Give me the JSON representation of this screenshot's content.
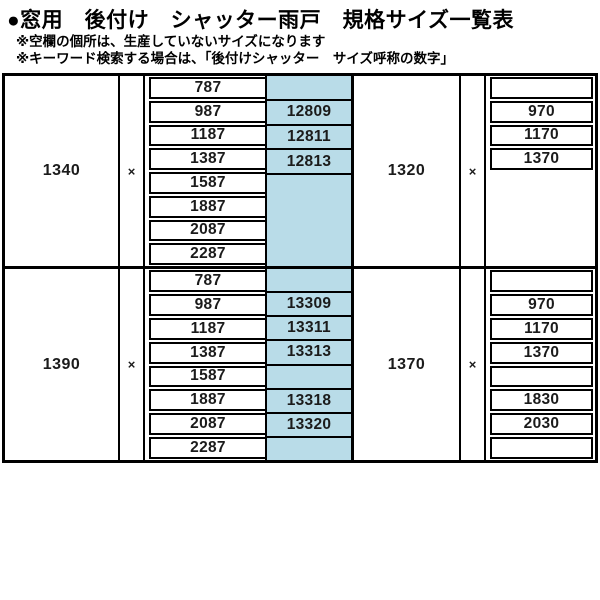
{
  "header": {
    "title": "●窓用　後付け　シャッター雨戸　規格サイズ一覧表",
    "note1": "※空欄の個所は、生産していないサイズになります",
    "note2": "※キーワード検索する場合は、「後付けシャッター　サイズ呼称の数字」"
  },
  "colors": {
    "highlight": "#b9dce8",
    "border": "#000000"
  },
  "sections": [
    {
      "height_left": "1340",
      "times": "×",
      "height_right": "1320",
      "rows": [
        {
          "width": "787",
          "code": "",
          "code_divider": true,
          "right": "",
          "right_cell": true
        },
        {
          "width": "987",
          "code": "12809",
          "code_divider": true,
          "right": "970",
          "right_cell": true
        },
        {
          "width": "1187",
          "code": "12811",
          "code_divider": true,
          "right": "1170",
          "right_cell": true
        },
        {
          "width": "1387",
          "code": "12813",
          "code_divider": true,
          "right": "1370",
          "right_cell": true
        },
        {
          "width": "1587",
          "code": "",
          "code_divider": false,
          "right": "",
          "right_cell": false
        },
        {
          "width": "1887",
          "code": "",
          "code_divider": false,
          "right": "",
          "right_cell": false
        },
        {
          "width": "2087",
          "code": "",
          "code_divider": false,
          "right": "",
          "right_cell": false
        },
        {
          "width": "2287",
          "code": "",
          "code_divider": false,
          "right": "",
          "right_cell": false
        }
      ]
    },
    {
      "height_left": "1390",
      "times": "×",
      "height_right": "1370",
      "rows": [
        {
          "width": "787",
          "code": "",
          "code_divider": true,
          "right": "",
          "right_cell": true
        },
        {
          "width": "987",
          "code": "13309",
          "code_divider": true,
          "right": "970",
          "right_cell": true
        },
        {
          "width": "1187",
          "code": "13311",
          "code_divider": true,
          "right": "1170",
          "right_cell": true
        },
        {
          "width": "1387",
          "code": "13313",
          "code_divider": true,
          "right": "1370",
          "right_cell": true
        },
        {
          "width": "1587",
          "code": "",
          "code_divider": true,
          "right": "",
          "right_cell": true
        },
        {
          "width": "1887",
          "code": "13318",
          "code_divider": true,
          "right": "1830",
          "right_cell": true
        },
        {
          "width": "2087",
          "code": "13320",
          "code_divider": true,
          "right": "2030",
          "right_cell": true
        },
        {
          "width": "2287",
          "code": "",
          "code_divider": false,
          "right": "",
          "right_cell": true
        }
      ]
    }
  ]
}
